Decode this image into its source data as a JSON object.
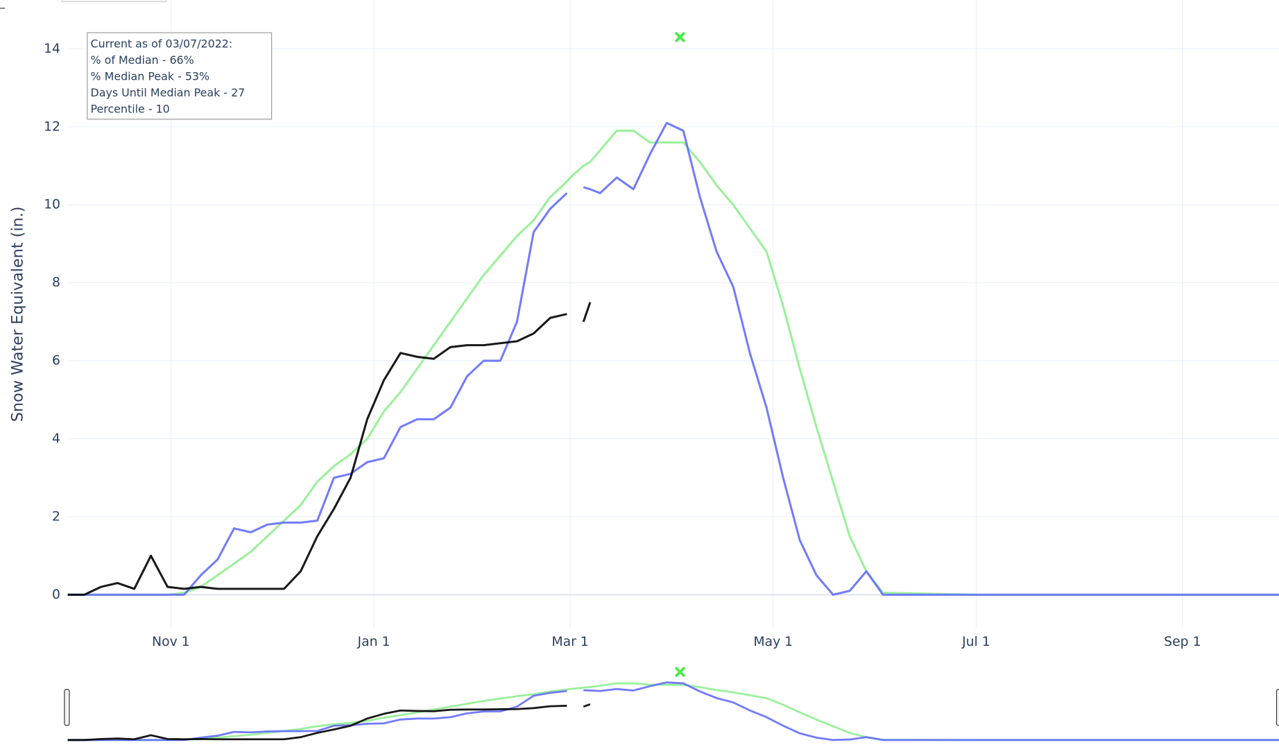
{
  "chart_data": {
    "type": "line",
    "y_label": "Snow Water Equivalent (in.)",
    "annotation": {
      "lines": [
        "Current as of 03/07/2022:",
        "% of Median - 66%",
        "% Median Peak - 53%",
        "Days Until Median Peak - 27",
        "Percentile - 10"
      ]
    },
    "x": [
      "Oct 1",
      "Oct 6",
      "Oct 11",
      "Oct 16",
      "Oct 21",
      "Oct 26",
      "Oct 31",
      "Nov 5",
      "Nov 10",
      "Nov 15",
      "Nov 20",
      "Nov 25",
      "Nov 30",
      "Dec 5",
      "Dec 10",
      "Dec 15",
      "Dec 20",
      "Dec 25",
      "Dec 30",
      "Jan 4",
      "Jan 9",
      "Jan 14",
      "Jan 19",
      "Jan 24",
      "Jan 29",
      "Feb 3",
      "Feb 8",
      "Feb 13",
      "Feb 18",
      "Feb 23",
      "Feb 28",
      "Mar 1",
      "Mar 5",
      "Mar 7",
      "Mar 10",
      "Mar 15",
      "Mar 20",
      "Mar 25",
      "Mar 30",
      "Apr 4",
      "Apr 9",
      "Apr 14",
      "Apr 19",
      "Apr 24",
      "Apr 29",
      "May 4",
      "May 9",
      "May 14",
      "May 19",
      "May 24",
      "May 29",
      "Jun 3",
      "Jul 1",
      "Aug 1",
      "Sep 1",
      "Sep 30"
    ],
    "series": [
      {
        "color": "#90ee90",
        "values": [
          0,
          0,
          0,
          0,
          0,
          0,
          0,
          0.05,
          0.2,
          0.5,
          0.8,
          1.1,
          1.5,
          1.9,
          2.3,
          2.9,
          3.3,
          3.6,
          4.0,
          4.7,
          5.2,
          5.8,
          6.4,
          7.0,
          7.6,
          8.2,
          8.7,
          9.2,
          9.6,
          10.2,
          10.6,
          10.7,
          11.0,
          11.1,
          11.4,
          11.9,
          11.9,
          11.6,
          11.6,
          11.6,
          11.1,
          10.5,
          10.0,
          9.4,
          8.8,
          7.4,
          5.8,
          4.3,
          2.9,
          1.5,
          0.6,
          0.05,
          0,
          0,
          0,
          0
        ]
      },
      {
        "color": "#636efa",
        "values": [
          0,
          0,
          0,
          0,
          0,
          0,
          0,
          0,
          0.5,
          0.9,
          1.7,
          1.6,
          1.8,
          1.85,
          1.85,
          1.9,
          3.0,
          3.1,
          3.4,
          3.5,
          4.3,
          4.5,
          4.5,
          4.8,
          5.6,
          6.0,
          6.0,
          7.0,
          9.3,
          9.9,
          10.3,
          null,
          10.45,
          10.4,
          10.3,
          10.7,
          10.4,
          11.3,
          12.1,
          11.9,
          10.2,
          8.8,
          7.9,
          6.2,
          4.8,
          3.0,
          1.4,
          0.5,
          0,
          0.1,
          0.6,
          0,
          0,
          0,
          0,
          0
        ]
      },
      {
        "color": "#000000",
        "values": [
          0,
          0,
          0.2,
          0.3,
          0.15,
          1.0,
          0.2,
          0.15,
          0.2,
          0.15,
          0.15,
          0.15,
          0.15,
          0.15,
          0.6,
          1.5,
          2.2,
          3.0,
          4.5,
          5.5,
          6.2,
          6.1,
          6.05,
          6.35,
          6.4,
          6.4,
          6.45,
          6.5,
          6.7,
          7.1,
          7.2,
          null,
          7.0,
          7.5,
          null,
          null,
          null,
          null,
          null,
          null,
          null,
          null,
          null,
          null,
          null,
          null,
          null,
          null,
          null,
          null,
          null,
          null,
          null,
          null,
          null,
          null
        ]
      }
    ],
    "markers": [
      {
        "x": "Apr 3",
        "y": 14.3,
        "color": "#44ee44"
      }
    ],
    "xlim": [
      "Oct 1",
      "Sep 30"
    ],
    "xticks": [
      "Nov 1",
      "Jan 1",
      "Mar 1",
      "May 1",
      "Jul 1",
      "Sep 1"
    ],
    "ylim": [
      -0.86,
      15.25
    ],
    "yticks": [
      0,
      2,
      4,
      6,
      8,
      10,
      12,
      14
    ],
    "grid": true,
    "range_slider": true
  }
}
